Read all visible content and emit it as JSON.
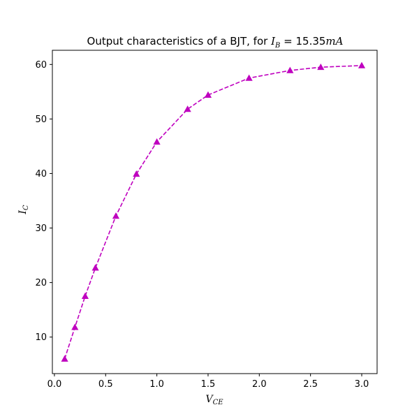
{
  "chart_data": {
    "type": "line",
    "title": {
      "prefix": "Output characteristics of a BJT, for ",
      "math_var": "I",
      "math_sub": "B",
      "math_rest": " = 15.35",
      "math_unit": "mA"
    },
    "xlabel": {
      "var": "V",
      "sub": "CE"
    },
    "ylabel": {
      "var": "I",
      "sub": "C"
    },
    "xlim": [
      -0.02,
      3.15
    ],
    "ylim": [
      3.3,
      62.6
    ],
    "xticks": [
      0.0,
      0.5,
      1.0,
      1.5,
      2.0,
      2.5,
      3.0
    ],
    "xtick_labels": [
      "0.0",
      "0.5",
      "1.0",
      "1.5",
      "2.0",
      "2.5",
      "3.0"
    ],
    "yticks": [
      10,
      20,
      30,
      40,
      50,
      60
    ],
    "ytick_labels": [
      "10",
      "20",
      "30",
      "40",
      "50",
      "60"
    ],
    "grid": false,
    "legend": "none",
    "series": [
      {
        "color": "#bf00bf",
        "line_style": "dashed",
        "marker": "triangle-up",
        "x": [
          0.1,
          0.2,
          0.3,
          0.4,
          0.6,
          0.8,
          1.0,
          1.3,
          1.5,
          1.9,
          2.3,
          2.6,
          3.0
        ],
        "y": [
          6.0,
          11.8,
          17.5,
          22.7,
          32.2,
          39.9,
          45.8,
          51.8,
          54.4,
          57.5,
          58.9,
          59.5,
          59.8
        ]
      }
    ]
  }
}
